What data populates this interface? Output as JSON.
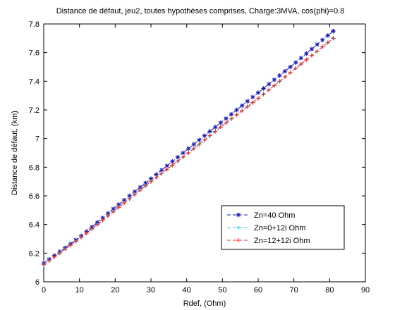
{
  "chart_data": {
    "type": "line",
    "title": "Distance de défaut, jeu2, toutes hypothèses comprises, Charge:3MVA, cos(phi)=0.8",
    "xlabel": "Rdef, (Ohm)",
    "ylabel": "Distance de défaut, (km)",
    "xlim": [
      0,
      90
    ],
    "ylim": [
      6,
      7.8
    ],
    "xticks": [
      0,
      10,
      20,
      30,
      40,
      50,
      60,
      70,
      80,
      90
    ],
    "yticks": [
      6,
      6.2,
      6.4,
      6.6,
      6.8,
      7,
      7.2,
      7.4,
      7.6,
      7.8
    ],
    "grid": false,
    "legend_position": "lower-right",
    "x": [
      0,
      10,
      20,
      30,
      40,
      50,
      60,
      70,
      80,
      81
    ],
    "series": [
      {
        "name": "Zn=40 Ohm",
        "color": "#1a1aa8",
        "marker": "asterisk",
        "values": [
          6.13,
          6.31,
          6.52,
          6.72,
          6.92,
          7.12,
          7.32,
          7.52,
          7.73,
          7.75
        ]
      },
      {
        "name": "Zn=0+12i Ohm",
        "color": "#33ccee",
        "marker": "dot",
        "values": [
          6.12,
          6.3,
          6.5,
          6.7,
          6.89,
          7.09,
          7.28,
          7.48,
          7.68,
          7.7
        ]
      },
      {
        "name": "Zn=12+12i Ohm",
        "color": "#e03030",
        "marker": "plus",
        "values": [
          6.12,
          6.3,
          6.5,
          6.7,
          6.89,
          7.09,
          7.28,
          7.48,
          7.68,
          7.7
        ]
      }
    ]
  }
}
